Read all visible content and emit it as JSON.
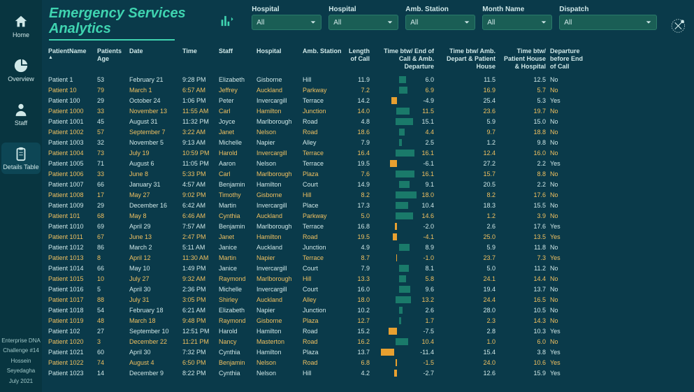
{
  "title": "Emergency Services Analytics",
  "sidebar": {
    "items": [
      {
        "label": "Home",
        "icon": "home"
      },
      {
        "label": "Overview",
        "icon": "pie"
      },
      {
        "label": "Staff",
        "icon": "person"
      },
      {
        "label": "Details Table",
        "icon": "clipboard"
      }
    ],
    "active_index": 3,
    "footer": [
      "Enterprise DNA",
      "Challenge #14",
      "Hossein",
      "Seyedagha",
      "July 2021"
    ]
  },
  "filters": [
    {
      "label": "Hospital",
      "value": "All",
      "wide": false
    },
    {
      "label": "Hospital",
      "value": "All",
      "wide": false
    },
    {
      "label": "Amb. Station",
      "value": "All",
      "wide": false
    },
    {
      "label": "Month Name",
      "value": "All",
      "wide": false
    },
    {
      "label": "Dispatch",
      "value": "All",
      "wide": true
    }
  ],
  "columns": [
    {
      "label": "PatientName",
      "align": "left",
      "sort": true
    },
    {
      "label": "Patients Age",
      "align": "left"
    },
    {
      "label": "Date",
      "align": "left"
    },
    {
      "label": "Time",
      "align": "left"
    },
    {
      "label": "Staff",
      "align": "left"
    },
    {
      "label": "Hospital",
      "align": "left"
    },
    {
      "label": "Amb. Station",
      "align": "left"
    },
    {
      "label": "Length of Call",
      "align": "right"
    },
    {
      "label": "Time btw/ End of Call & Amb. Departure",
      "align": "right"
    },
    {
      "label": "Time btw/ Amb. Depart & Patient House",
      "align": "right"
    },
    {
      "label": "Time btw/ Patient House & Hospital",
      "align": "right"
    },
    {
      "label": "Departure before End of Call",
      "align": "left"
    }
  ],
  "bar_colors": {
    "positive": "#1a7a6a",
    "negative": "#e8a030"
  },
  "bar_range": {
    "min": -15,
    "max": 20
  },
  "highlight_color": "#f0c060",
  "rows": [
    {
      "hl": false,
      "c": [
        "Patient 1",
        "53",
        "February 21",
        "9:28 PM",
        "Elizabeth",
        "Gisborne",
        "Hill",
        "11.9",
        6.0,
        "11.5",
        "12.5",
        "No"
      ]
    },
    {
      "hl": true,
      "c": [
        "Patient 10",
        "79",
        "March 1",
        "6:57 AM",
        "Jeffrey",
        "Auckland",
        "Parkway",
        "7.2",
        6.9,
        "16.9",
        "5.7",
        "No"
      ]
    },
    {
      "hl": false,
      "c": [
        "Patient 100",
        "29",
        "October 24",
        "1:06 PM",
        "Peter",
        "Invercargill",
        "Terrace",
        "14.2",
        -4.9,
        "25.4",
        "5.3",
        "Yes"
      ]
    },
    {
      "hl": true,
      "c": [
        "Patient 1000",
        "33",
        "November 13",
        "11:55 AM",
        "Carl",
        "Hamilton",
        "Junction",
        "14.0",
        11.5,
        "23.6",
        "19.7",
        "No"
      ]
    },
    {
      "hl": false,
      "c": [
        "Patient 1001",
        "45",
        "August 31",
        "11:32 PM",
        "Joyce",
        "Marlborough",
        "Road",
        "4.8",
        15.1,
        "5.9",
        "15.0",
        "No"
      ]
    },
    {
      "hl": true,
      "c": [
        "Patient 1002",
        "57",
        "September 7",
        "3:22 AM",
        "Janet",
        "Nelson",
        "Road",
        "18.6",
        4.4,
        "9.7",
        "18.8",
        "No"
      ]
    },
    {
      "hl": false,
      "c": [
        "Patient 1003",
        "32",
        "November 5",
        "9:13 AM",
        "Michelle",
        "Napier",
        "Alley",
        "7.9",
        2.5,
        "1.2",
        "9.8",
        "No"
      ]
    },
    {
      "hl": true,
      "c": [
        "Patient 1004",
        "73",
        "July 19",
        "10:59 PM",
        "Harold",
        "Invercargill",
        "Terrace",
        "16.4",
        16.1,
        "12.4",
        "16.0",
        "No"
      ]
    },
    {
      "hl": false,
      "c": [
        "Patient 1005",
        "71",
        "August 6",
        "11:05 PM",
        "Aaron",
        "Nelson",
        "Terrace",
        "19.5",
        -6.1,
        "27.2",
        "2.2",
        "Yes"
      ]
    },
    {
      "hl": true,
      "c": [
        "Patient 1006",
        "33",
        "June 8",
        "5:33 PM",
        "Carl",
        "Marlborough",
        "Plaza",
        "7.6",
        16.1,
        "15.7",
        "8.8",
        "No"
      ]
    },
    {
      "hl": false,
      "c": [
        "Patient 1007",
        "66",
        "January 31",
        "4:57 AM",
        "Benjamin",
        "Hamilton",
        "Court",
        "14.9",
        9.1,
        "20.5",
        "2.2",
        "No"
      ]
    },
    {
      "hl": true,
      "c": [
        "Patient 1008",
        "17",
        "May 27",
        "9:02 PM",
        "Timothy",
        "Gisborne",
        "Hill",
        "8.2",
        18.0,
        "8.2",
        "17.6",
        "No"
      ]
    },
    {
      "hl": false,
      "c": [
        "Patient 1009",
        "29",
        "December 16",
        "6:42 AM",
        "Martin",
        "Invercargill",
        "Place",
        "17.3",
        10.4,
        "18.3",
        "15.5",
        "No"
      ]
    },
    {
      "hl": true,
      "c": [
        "Patient 101",
        "68",
        "May 8",
        "6:46 AM",
        "Cynthia",
        "Auckland",
        "Parkway",
        "5.0",
        14.6,
        "1.2",
        "3.9",
        "No"
      ]
    },
    {
      "hl": false,
      "c": [
        "Patient 1010",
        "69",
        "April 29",
        "7:57 AM",
        "Benjamin",
        "Marlborough",
        "Terrace",
        "16.8",
        -2.0,
        "2.6",
        "17.6",
        "Yes"
      ]
    },
    {
      "hl": true,
      "c": [
        "Patient 1011",
        "67",
        "June 13",
        "2:47 PM",
        "Janet",
        "Hamilton",
        "Road",
        "19.5",
        -4.1,
        "25.0",
        "13.5",
        "Yes"
      ]
    },
    {
      "hl": false,
      "c": [
        "Patient 1012",
        "86",
        "March 2",
        "5:11 AM",
        "Janice",
        "Auckland",
        "Junction",
        "4.9",
        8.9,
        "5.9",
        "11.8",
        "No"
      ]
    },
    {
      "hl": true,
      "c": [
        "Patient 1013",
        "8",
        "April 12",
        "11:30 AM",
        "Martin",
        "Napier",
        "Terrace",
        "8.7",
        -1.0,
        "23.7",
        "7.3",
        "Yes"
      ]
    },
    {
      "hl": false,
      "c": [
        "Patient 1014",
        "66",
        "May 10",
        "1:49 PM",
        "Janice",
        "Invercargill",
        "Court",
        "7.9",
        8.1,
        "5.0",
        "11.2",
        "No"
      ]
    },
    {
      "hl": true,
      "c": [
        "Patient 1015",
        "10",
        "July 27",
        "9:32 AM",
        "Raymond",
        "Marlborough",
        "Hill",
        "13.3",
        5.8,
        "24.1",
        "14.4",
        "No"
      ]
    },
    {
      "hl": false,
      "c": [
        "Patient 1016",
        "5",
        "April 30",
        "2:36 PM",
        "Michelle",
        "Invercargill",
        "Court",
        "16.0",
        9.6,
        "19.4",
        "13.7",
        "No"
      ]
    },
    {
      "hl": true,
      "c": [
        "Patient 1017",
        "88",
        "July 31",
        "3:05 PM",
        "Shirley",
        "Auckland",
        "Alley",
        "18.0",
        13.2,
        "24.4",
        "16.5",
        "No"
      ]
    },
    {
      "hl": false,
      "c": [
        "Patient 1018",
        "54",
        "February 18",
        "6:21 AM",
        "Elizabeth",
        "Napier",
        "Junction",
        "10.2",
        2.6,
        "28.0",
        "10.5",
        "No"
      ]
    },
    {
      "hl": true,
      "c": [
        "Patient 1019",
        "48",
        "March 18",
        "9:48 PM",
        "Raymond",
        "Gisborne",
        "Plaza",
        "12.7",
        1.7,
        "2.3",
        "14.3",
        "No"
      ]
    },
    {
      "hl": false,
      "c": [
        "Patient 102",
        "27",
        "September 10",
        "12:51 PM",
        "Harold",
        "Hamilton",
        "Road",
        "15.2",
        -7.5,
        "2.8",
        "10.3",
        "Yes"
      ]
    },
    {
      "hl": true,
      "c": [
        "Patient 1020",
        "3",
        "December 22",
        "11:21 PM",
        "Nancy",
        "Masterton",
        "Road",
        "16.2",
        10.4,
        "1.0",
        "6.0",
        "No"
      ]
    },
    {
      "hl": false,
      "c": [
        "Patient 1021",
        "60",
        "April 30",
        "7:32 PM",
        "Cynthia",
        "Hamilton",
        "Plaza",
        "13.7",
        -11.4,
        "15.4",
        "3.8",
        "Yes"
      ]
    },
    {
      "hl": true,
      "c": [
        "Patient 1022",
        "74",
        "August 4",
        "6:50 PM",
        "Benjamin",
        "Nelson",
        "Road",
        "6.8",
        -1.5,
        "24.0",
        "10.6",
        "Yes"
      ]
    },
    {
      "hl": false,
      "c": [
        "Patient 1023",
        "14",
        "December 9",
        "8:22 PM",
        "Cynthia",
        "Nelson",
        "Hill",
        "4.2",
        -2.7,
        "12.6",
        "15.9",
        "Yes"
      ]
    }
  ]
}
